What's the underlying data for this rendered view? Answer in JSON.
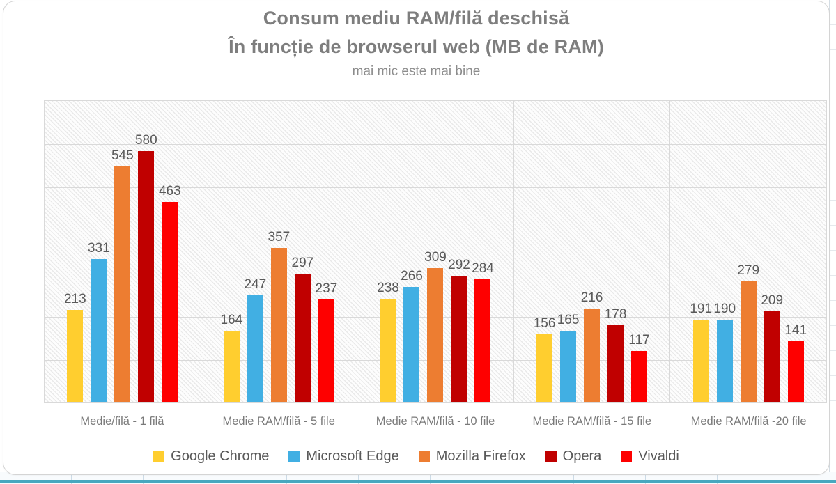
{
  "chart_data": {
    "type": "bar",
    "title": "Consum mediu RAM/filă deschisă",
    "subtitle": "În funcție de browserul web (MB de RAM)",
    "note": "mai mic este mai bine",
    "categories": [
      "Medie/filă - 1 filă",
      "Medie RAM/filă - 5 file",
      "Medie RAM/filă -  10 file",
      "Medie RAM/filă - 15 file",
      "Medie RAM/filă -20 file"
    ],
    "series": [
      {
        "name": "Google Chrome",
        "color": "#FFCE2F",
        "values": [
          213,
          164,
          238,
          156,
          191
        ]
      },
      {
        "name": "Microsoft Edge",
        "color": "#41AFE3",
        "values": [
          331,
          247,
          266,
          165,
          190
        ]
      },
      {
        "name": "Mozilla Firefox",
        "color": "#ED7D31",
        "values": [
          545,
          357,
          309,
          216,
          279
        ]
      },
      {
        "name": "Opera",
        "color": "#C00000",
        "values": [
          580,
          297,
          292,
          178,
          209
        ]
      },
      {
        "name": "Vivaldi",
        "color": "#FE0000",
        "values": [
          463,
          237,
          284,
          117,
          141
        ]
      }
    ],
    "y_ticks": [
      700,
      600,
      500,
      400,
      300,
      200,
      100,
      0
    ],
    "ylim": [
      0,
      700
    ],
    "grid": true,
    "legend_position": "bottom",
    "plot_background": "hatched-diagonal",
    "gridline_color": "#d9d9d9",
    "label_color": "#595959"
  },
  "sheet": {
    "teal_line_color": "#47a8bf",
    "cell_border_color": "#ccdbe6"
  }
}
